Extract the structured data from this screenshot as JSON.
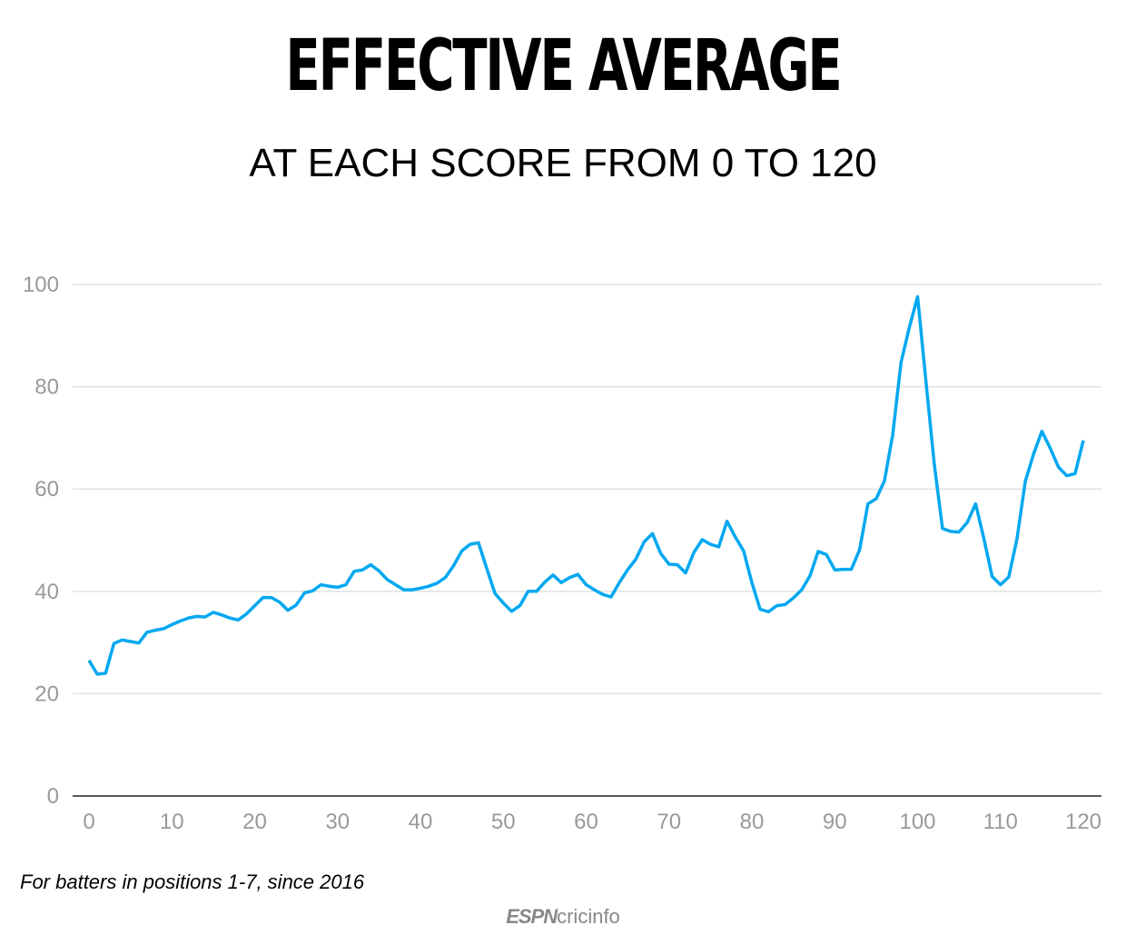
{
  "title": "EFFECTIVE AVERAGE",
  "subtitle": "AT EACH SCORE FROM 0 TO 120",
  "footnote": "For batters in positions 1-7, since 2016",
  "logo": {
    "brand": "ESPN",
    "name": "cricinfo"
  },
  "chart_data": {
    "type": "line",
    "title": "EFFECTIVE AVERAGE",
    "subtitle": "AT EACH SCORE FROM 0 TO 120",
    "xlabel": "",
    "ylabel": "",
    "xlim": [
      0,
      120
    ],
    "ylim": [
      0,
      100
    ],
    "xticks": [
      0,
      10,
      20,
      30,
      40,
      50,
      60,
      70,
      80,
      90,
      100,
      110,
      120
    ],
    "yticks": [
      0,
      20,
      40,
      60,
      80,
      100
    ],
    "grid": "horizontal",
    "line_color": "#00a8f0",
    "x": [
      0,
      1,
      2,
      3,
      4,
      5,
      6,
      7,
      8,
      9,
      10,
      11,
      12,
      13,
      14,
      15,
      16,
      17,
      18,
      19,
      20,
      21,
      22,
      23,
      24,
      25,
      26,
      27,
      28,
      29,
      30,
      31,
      32,
      33,
      34,
      35,
      36,
      37,
      38,
      39,
      40,
      41,
      42,
      43,
      44,
      45,
      46,
      47,
      48,
      49,
      50,
      51,
      52,
      53,
      54,
      55,
      56,
      57,
      58,
      59,
      60,
      61,
      62,
      63,
      64,
      65,
      66,
      67,
      68,
      69,
      70,
      71,
      72,
      73,
      74,
      75,
      76,
      77,
      78,
      79,
      80,
      81,
      82,
      83,
      84,
      85,
      86,
      87,
      88,
      89,
      90,
      91,
      92,
      93,
      94,
      95,
      96,
      97,
      98,
      99,
      100,
      101,
      102,
      103,
      104,
      105,
      106,
      107,
      108,
      109,
      110,
      111,
      112,
      113,
      114,
      115,
      116,
      117,
      118,
      119,
      120
    ],
    "values": [
      26.5,
      23.8,
      24,
      29.8,
      30.5,
      30.2,
      29.9,
      32,
      32.4,
      32.7,
      33.5,
      34.2,
      34.8,
      35.1,
      35,
      35.9,
      35.4,
      34.8,
      34.4,
      35.6,
      37.2,
      38.8,
      38.8,
      37.9,
      36.3,
      37.3,
      39.7,
      40.1,
      41.3,
      41,
      40.8,
      41.3,
      43.9,
      44.2,
      45.2,
      44,
      42.3,
      41.3,
      40.3,
      40.3,
      40.6,
      41,
      41.6,
      42.7,
      45,
      47.9,
      49.2,
      49.5,
      44.5,
      39.6,
      37.7,
      36.1,
      37.2,
      40,
      40,
      41.8,
      43.2,
      41.7,
      42.7,
      43.3,
      41.3,
      40.3,
      39.4,
      38.9,
      41.7,
      44.2,
      46.3,
      49.7,
      51.3,
      47.4,
      45.3,
      45.2,
      43.6,
      47.6,
      50.1,
      49.2,
      48.7,
      53.7,
      50.6,
      47.9,
      41.7,
      36.5,
      36,
      37.2,
      37.4,
      38.7,
      40.3,
      43,
      47.8,
      47.2,
      44.2,
      44.3,
      44.3,
      48.1,
      57.1,
      58.1,
      61.6,
      70.6,
      84.8,
      91.6,
      97.6,
      81.2,
      65,
      52.3,
      51.7,
      51.6,
      53.5,
      57.1,
      50.3,
      42.9,
      41.3,
      42.8,
      50.3,
      61.5,
      66.9,
      71.3,
      68,
      64.3,
      62.6,
      63,
      69.5
    ]
  }
}
